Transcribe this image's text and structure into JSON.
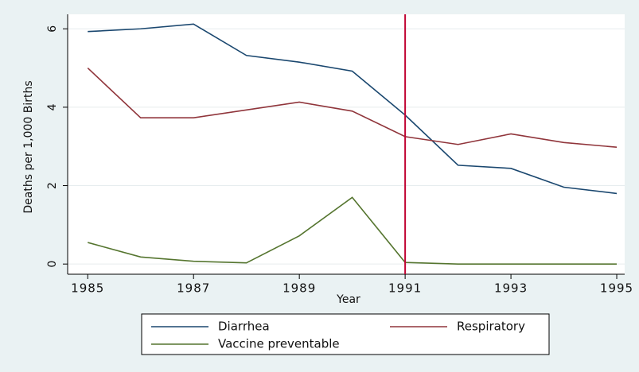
{
  "chart_data": {
    "type": "line",
    "x_label": "Year",
    "y_label": "Deaths per 1,000 Births",
    "x": [
      1985,
      1986,
      1987,
      1988,
      1989,
      1990,
      1991,
      1992,
      1993,
      1994,
      1995
    ],
    "series": [
      {
        "name": "Diarrhea",
        "color": "#1a476f",
        "values": [
          5.93,
          6.0,
          6.12,
          5.32,
          5.15,
          4.92,
          3.8,
          2.52,
          2.44,
          1.96,
          1.8
        ]
      },
      {
        "name": "Respiratory",
        "color": "#90353b",
        "values": [
          5.0,
          3.73,
          3.73,
          3.93,
          4.13,
          3.9,
          3.25,
          3.05,
          3.32,
          3.1,
          2.98
        ]
      },
      {
        "name": "Vaccine preventable",
        "color": "#55752f",
        "values": [
          0.55,
          0.18,
          0.07,
          0.03,
          0.72,
          1.7,
          0.04,
          0.0,
          0.0,
          0.0,
          0.0
        ]
      }
    ],
    "vline": 1991,
    "vline_color": "#c10534",
    "xlim": [
      1984.62,
      1995.15
    ],
    "xticks": [
      1985,
      1987,
      1989,
      1991,
      1993,
      1995
    ],
    "ylim": [
      -0.26,
      6.37
    ],
    "yticks": [
      0,
      2,
      4,
      6
    ],
    "grid": true
  }
}
